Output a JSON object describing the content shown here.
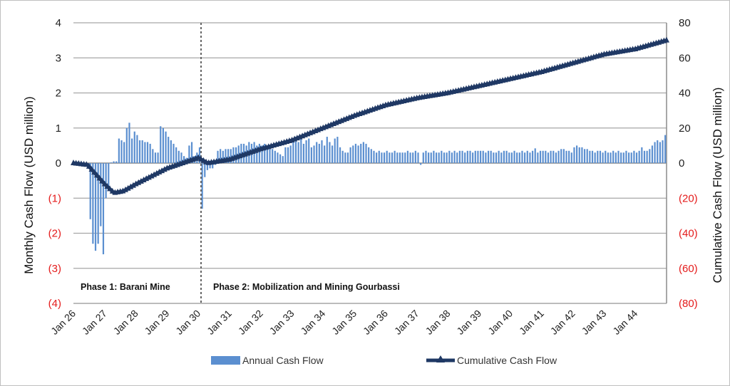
{
  "chart_data": {
    "type": "bar+line",
    "title": "",
    "ylabel": "Monthly Cash Flow (USD million)",
    "y2label": "Cumulative Cash Flow (USD million)",
    "ylim": [
      -4,
      4
    ],
    "y2lim": [
      -80,
      80
    ],
    "yticks": [
      "4",
      "3",
      "2",
      "1",
      "0",
      "(1)",
      "(2)",
      "(3)",
      "(4)"
    ],
    "y2ticks": [
      "80",
      "60",
      "40",
      "20",
      "0",
      "(20)",
      "(40)",
      "(60)",
      "(80)"
    ],
    "xticks": [
      "Jan 26",
      "Jan 27",
      "Jan 28",
      "Jan 29",
      "Jan 30",
      "Jan 31",
      "Jan 32",
      "Jan 33",
      "Jan 34",
      "Jan 35",
      "Jan 36",
      "Jan 37",
      "Jan 38",
      "Jan 39",
      "Jan 40",
      "Jan 41",
      "Jan 42",
      "Jan 43",
      "Jan 44"
    ],
    "grid": true,
    "legend_position": "bottom",
    "annotations": [
      "Phase 1: Barani Mine",
      "Phase 2: Mobilization and Mining Gourbassi"
    ],
    "divider_at": "Jan 30",
    "series": [
      {
        "name": "Annual Cash Flow",
        "type": "bar",
        "axis": "left",
        "color": "#5b8fd0",
        "monthly_values_by_year": [
          [
            0,
            0,
            0,
            0,
            0,
            0,
            -1.6,
            -2.3,
            -2.5,
            -2.3,
            -1.8,
            -2.6
          ],
          [
            -1.0,
            -0.7,
            0.02,
            0.05,
            0.05,
            0.7,
            0.65,
            0.6,
            1.0,
            1.15,
            0.7,
            0.9
          ],
          [
            0.8,
            0.65,
            0.65,
            0.6,
            0.6,
            0.55,
            0.4,
            0.3,
            0.3,
            1.05,
            1.0,
            0.9
          ],
          [
            0.75,
            0.65,
            0.55,
            0.45,
            0.35,
            0.3,
            0.2,
            0.15,
            0.5,
            0.6,
            0.2,
            0.3
          ],
          [
            0.45,
            -1.3,
            -0.4,
            -0.2,
            -0.15,
            -0.15,
            -0.05,
            0.35,
            0.4,
            0.35,
            0.4,
            0.4
          ],
          [
            0.4,
            0.45,
            0.45,
            0.5,
            0.55,
            0.55,
            0.5,
            0.6,
            0.55,
            0.6,
            0.5,
            0.55
          ],
          [
            0.5,
            0.55,
            0.45,
            0.5,
            0.4,
            0.35,
            0.3,
            0.25,
            0.2,
            0.45,
            0.45,
            0.5
          ],
          [
            0.65,
            0.75,
            0.6,
            0.7,
            0.55,
            0.65,
            0.7,
            0.45,
            0.5,
            0.6,
            0.55,
            0.65
          ],
          [
            0.5,
            0.75,
            0.6,
            0.5,
            0.7,
            0.75,
            0.45,
            0.35,
            0.3,
            0.3,
            0.45,
            0.5
          ],
          [
            0.55,
            0.5,
            0.55,
            0.6,
            0.55,
            0.45,
            0.4,
            0.35,
            0.3,
            0.35,
            0.3,
            0.3
          ],
          [
            0.35,
            0.3,
            0.3,
            0.35,
            0.3,
            0.3,
            0.3,
            0.3,
            0.35,
            0.3,
            0.3,
            0.35
          ],
          [
            0.3,
            -0.05,
            0.3,
            0.35,
            0.3,
            0.3,
            0.35,
            0.3,
            0.3,
            0.35,
            0.3,
            0.3
          ],
          [
            0.35,
            0.3,
            0.35,
            0.3,
            0.35,
            0.35,
            0.3,
            0.35,
            0.35,
            0.3,
            0.35,
            0.35
          ],
          [
            0.35,
            0.35,
            0.3,
            0.35,
            0.35,
            0.3,
            0.3,
            0.35,
            0.3,
            0.35,
            0.35,
            0.3
          ],
          [
            0.3,
            0.35,
            0.3,
            0.3,
            0.35,
            0.3,
            0.35,
            0.3,
            0.35,
            0.42,
            0.3,
            0.35
          ],
          [
            0.35,
            0.35,
            0.3,
            0.35,
            0.35,
            0.3,
            0.35,
            0.4,
            0.4,
            0.35,
            0.35,
            0.3
          ],
          [
            0.45,
            0.5,
            0.45,
            0.45,
            0.4,
            0.4,
            0.35,
            0.35,
            0.3,
            0.35,
            0.35,
            0.3
          ],
          [
            0.35,
            0.3,
            0.3,
            0.35,
            0.3,
            0.35,
            0.3,
            0.3,
            0.35,
            0.3,
            0.3,
            0.35
          ],
          [
            0.3,
            0.35,
            0.45,
            0.35,
            0.35,
            0.4,
            0.5,
            0.6,
            0.65,
            0.6,
            0.65,
            0.8
          ]
        ]
      },
      {
        "name": "Cumulative Cash Flow",
        "type": "line",
        "axis": "right",
        "color": "#1f3864",
        "marker": "triangle",
        "points": [
          [
            0,
            0
          ],
          [
            0.45,
            -1
          ],
          [
            1.0,
            -12
          ],
          [
            1.3,
            -17
          ],
          [
            1.6,
            -16
          ],
          [
            2.0,
            -12
          ],
          [
            3.0,
            -3
          ],
          [
            4.0,
            3
          ],
          [
            4.3,
            0
          ],
          [
            5.0,
            2
          ],
          [
            6.0,
            8
          ],
          [
            7.0,
            13
          ],
          [
            8.0,
            20
          ],
          [
            9.0,
            27
          ],
          [
            10.0,
            33
          ],
          [
            11.0,
            37
          ],
          [
            12.0,
            40
          ],
          [
            13.0,
            44
          ],
          [
            14.0,
            48
          ],
          [
            15.0,
            52
          ],
          [
            16.0,
            57
          ],
          [
            17.0,
            62
          ],
          [
            18.0,
            65
          ],
          [
            19.0,
            70
          ]
        ]
      }
    ]
  }
}
